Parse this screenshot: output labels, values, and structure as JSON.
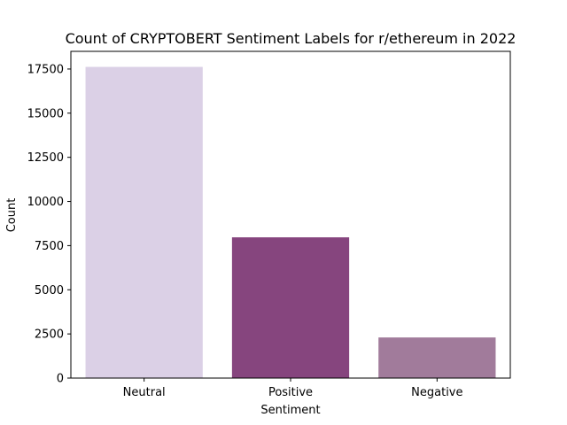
{
  "chart_data": {
    "type": "bar",
    "title": "Count of CRYPTOBERT Sentiment Labels for r/ethereum in 2022",
    "xlabel": "Sentiment",
    "ylabel": "Count",
    "categories": [
      "Neutral",
      "Positive",
      "Negative"
    ],
    "values": [
      17620,
      7970,
      2300
    ],
    "colors": [
      "#dbd0e6",
      "#86457e",
      "#a17b9b"
    ],
    "ylim": [
      0,
      18500
    ],
    "yticks": [
      0,
      2500,
      5000,
      7500,
      10000,
      12500,
      15000,
      17500
    ],
    "ytick_labels": [
      "0",
      "2500",
      "5000",
      "7500",
      "10000",
      "12500",
      "15000",
      "17500"
    ],
    "grid": false,
    "legend": "none"
  }
}
